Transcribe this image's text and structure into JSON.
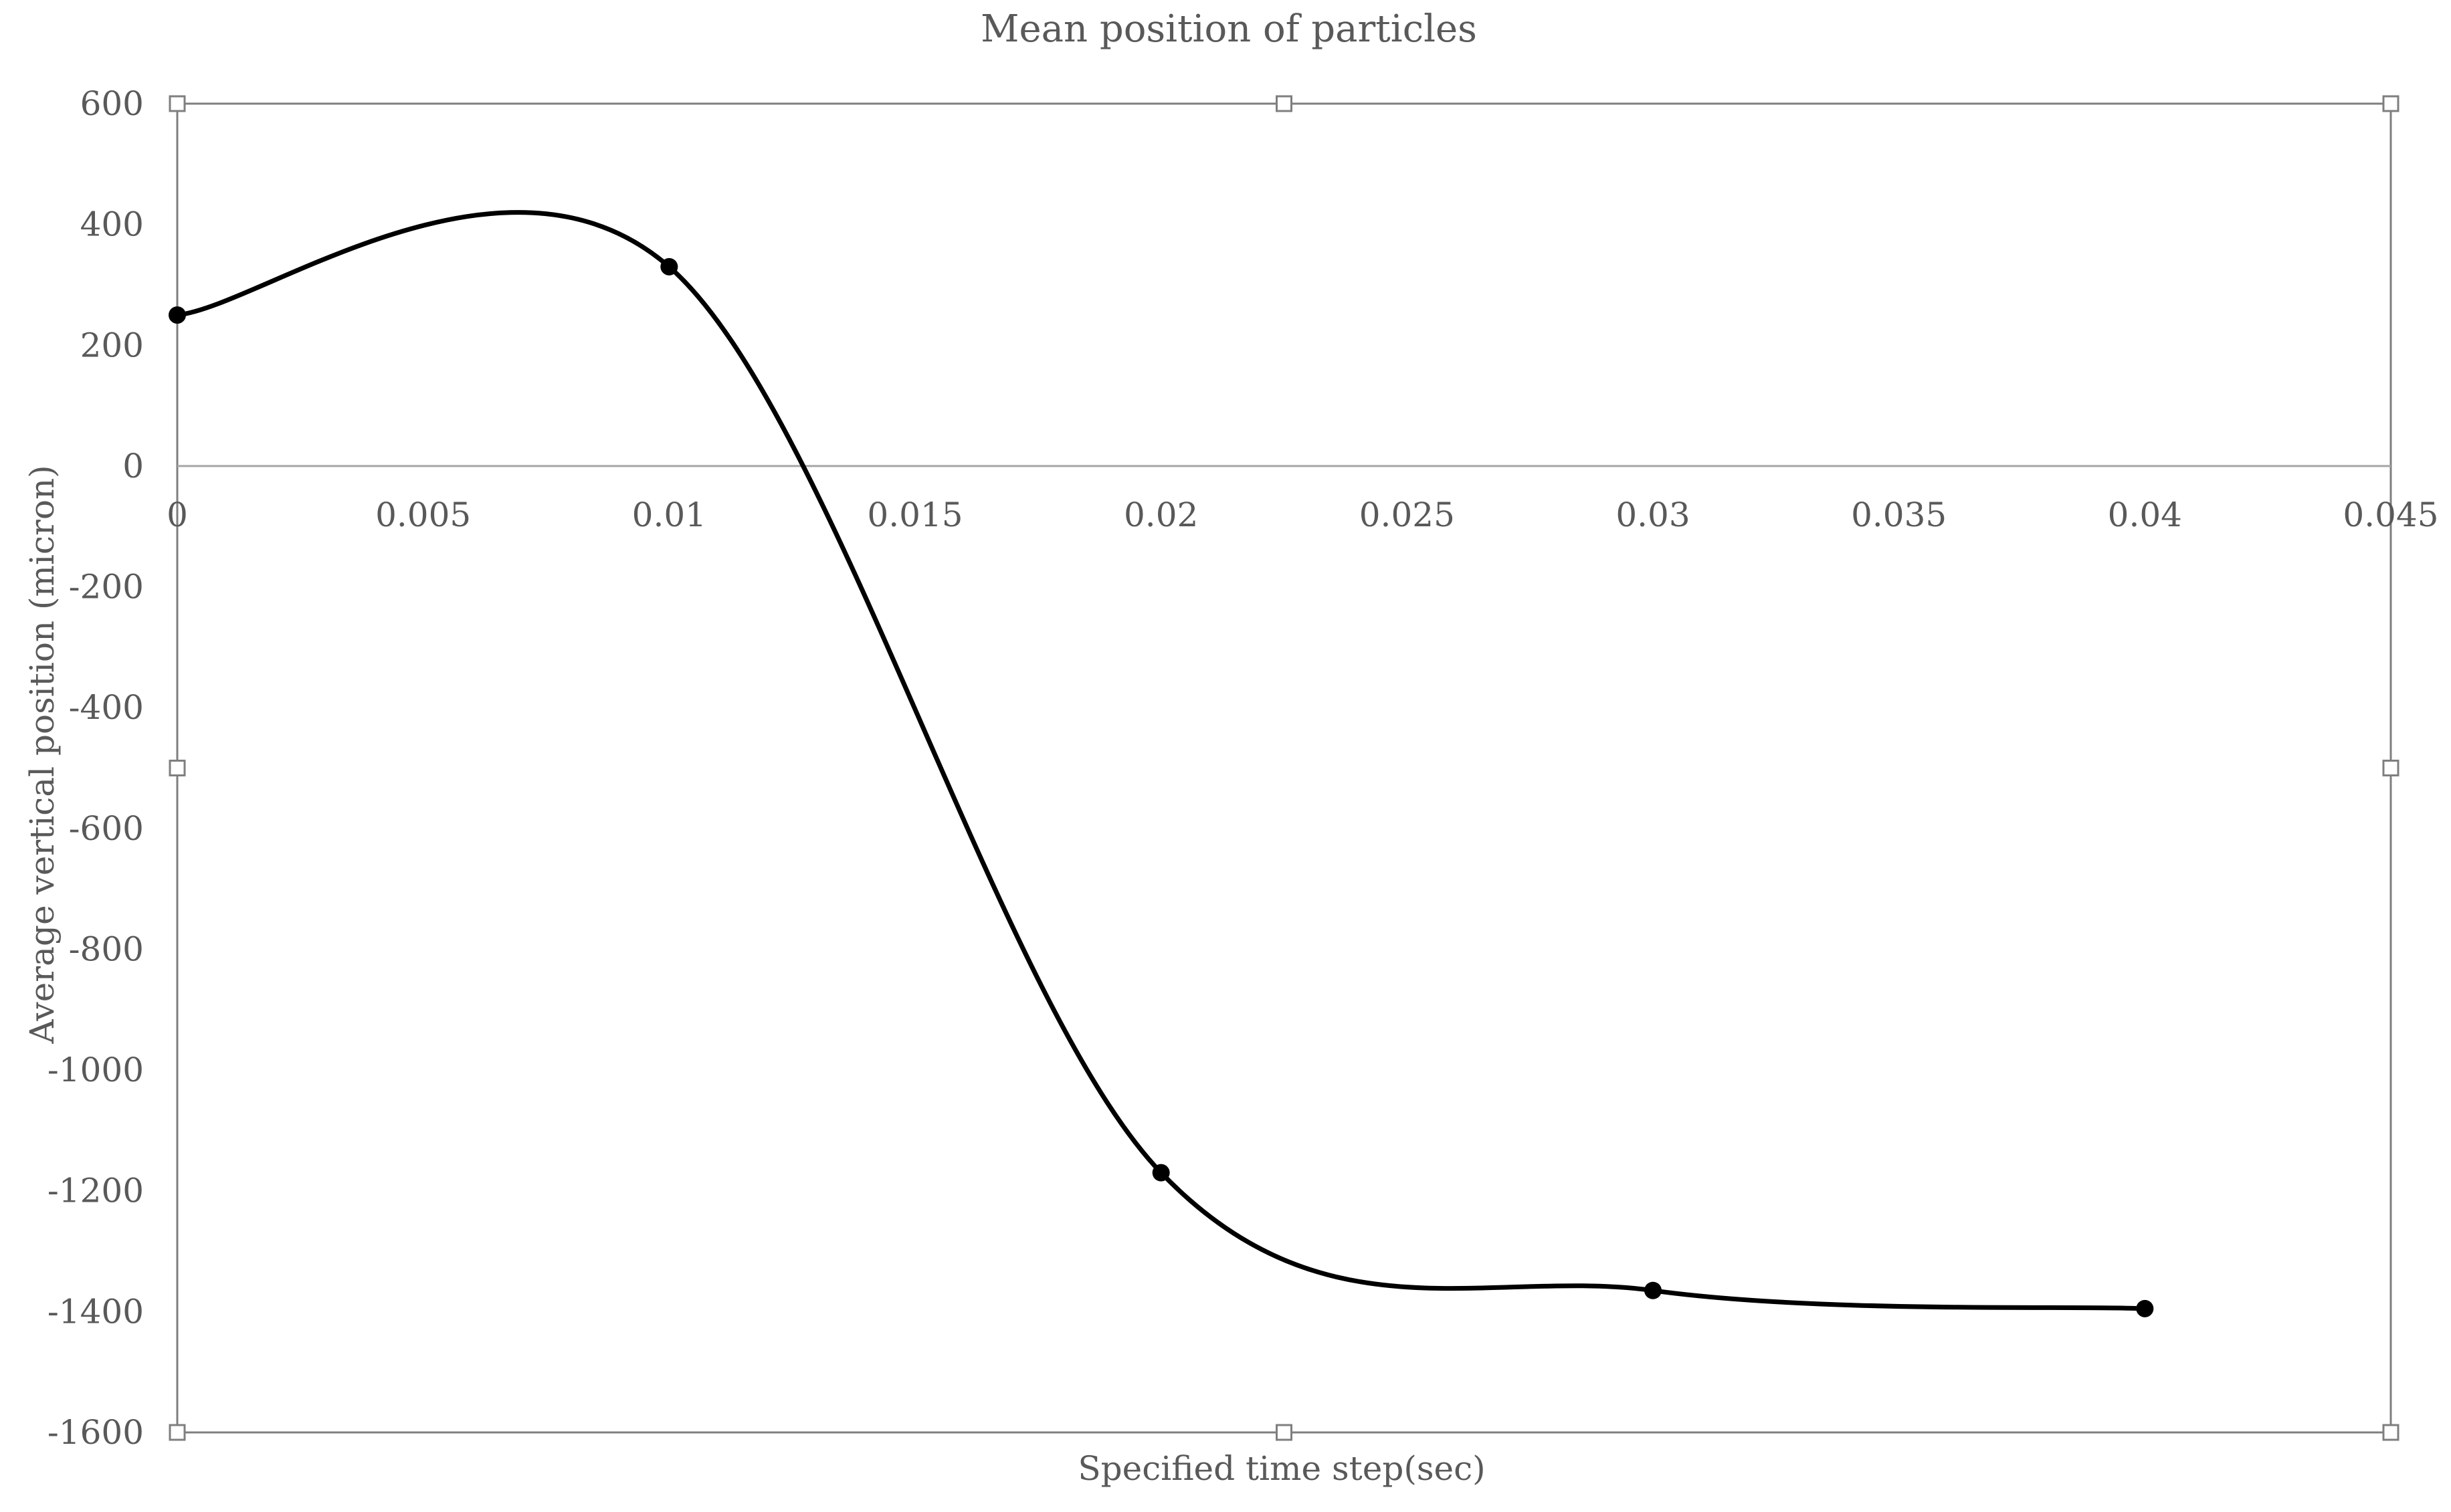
{
  "chart_data": {
    "type": "scatter",
    "title": "Mean position of particles",
    "xlabel": "Specified time step(sec)",
    "ylabel": "Average vertical position (micron)",
    "xlim": [
      0,
      0.045
    ],
    "ylim": [
      -1600,
      600
    ],
    "xticks": [
      0,
      0.005,
      0.01,
      0.015,
      0.02,
      0.025,
      0.03,
      0.035,
      0.04,
      0.045
    ],
    "xtick_labels": [
      "0",
      "0.005",
      "0.01",
      "0.015",
      "0.02",
      "0.025",
      "0.03",
      "0.035",
      "0.04",
      "0.045"
    ],
    "yticks": [
      600,
      400,
      200,
      0,
      -200,
      -400,
      -600,
      -800,
      -1000,
      -1200,
      -1400,
      -1600
    ],
    "ytick_labels": [
      "600",
      "400",
      "200",
      "0",
      "-200",
      "-400",
      "-600",
      "-800",
      "-1000",
      "-1200",
      "-1400",
      "-1600"
    ],
    "grid": false,
    "smoothed": true,
    "series": [
      {
        "x": [
          0,
          0.01,
          0.02,
          0.03,
          0.04
        ],
        "y": [
          250,
          330,
          -1170,
          -1365,
          -1395
        ],
        "color": "#000000",
        "marker": "circle"
      }
    ]
  }
}
